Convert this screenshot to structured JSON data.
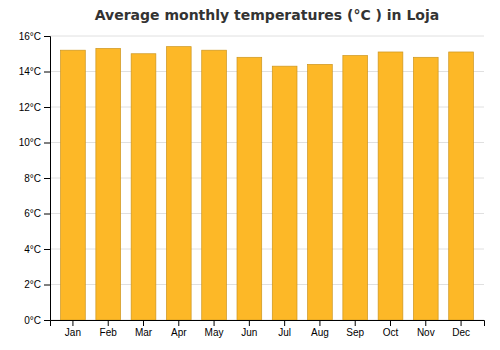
{
  "chart_data": {
    "type": "bar",
    "title": "Average monthly temperatures (°C ) in Loja",
    "categories": [
      "Jan",
      "Feb",
      "Mar",
      "Apr",
      "May",
      "Jun",
      "Jul",
      "Aug",
      "Sep",
      "Oct",
      "Nov",
      "Dec"
    ],
    "values": [
      15.2,
      15.3,
      15.0,
      15.4,
      15.2,
      14.8,
      14.3,
      14.4,
      14.9,
      15.1,
      14.8,
      15.1
    ],
    "color": "#FDB827",
    "ylim": [
      0,
      16
    ],
    "yticks": [
      {
        "value": 0,
        "label": "0°C"
      },
      {
        "value": 2,
        "label": "2°C"
      },
      {
        "value": 4,
        "label": "4°C"
      },
      {
        "value": 6,
        "label": "6°C"
      },
      {
        "value": 8,
        "label": "8°C"
      },
      {
        "value": 10,
        "label": "10°C"
      },
      {
        "value": 12,
        "label": "12°C"
      },
      {
        "value": 14,
        "label": "14°C"
      },
      {
        "value": 16,
        "label": "16°C"
      }
    ],
    "grid": true
  }
}
